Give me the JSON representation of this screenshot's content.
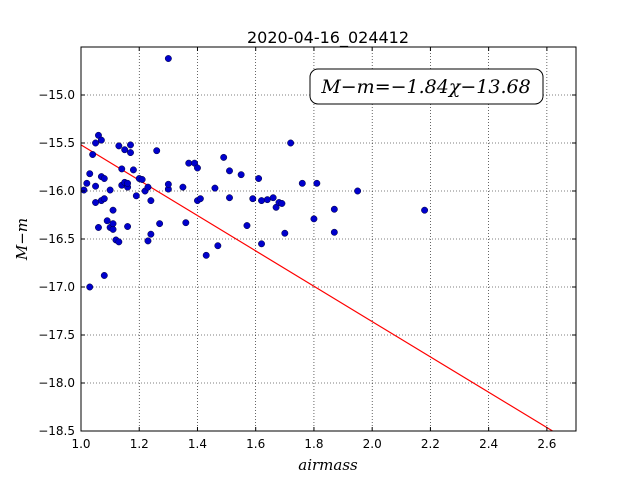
{
  "chart_data": {
    "type": "scatter",
    "title": "2020-04-16_024412",
    "xlabel": "airmass",
    "ylabel": "M−m",
    "xlim": [
      1.0,
      2.7
    ],
    "ylim": [
      -18.5,
      -14.5
    ],
    "xticks": [
      1.0,
      1.2,
      1.4,
      1.6,
      1.8,
      2.0,
      2.2,
      2.4,
      2.6
    ],
    "xtick_labels": [
      "1.0",
      "1.2",
      "1.4",
      "1.6",
      "1.8",
      "2.0",
      "2.2",
      "2.4",
      "2.6"
    ],
    "yticks": [
      -15.0,
      -15.5,
      -16.0,
      -16.5,
      -17.0,
      -17.5,
      -18.0,
      -18.5
    ],
    "ytick_labels": [
      "−15.0",
      "−15.5",
      "−16.0",
      "−16.5",
      "−17.0",
      "−17.5",
      "−18.0",
      "−18.5"
    ],
    "grid": true,
    "annotation": "M−m=−1.84χ−13.68",
    "fit_line": {
      "slope": -1.84,
      "intercept": -13.68,
      "x_range": [
        1.0,
        2.7
      ],
      "color": "#ff0000"
    },
    "marker_color": "#0000cc",
    "points": [
      {
        "x": 1.01,
        "y": -15.99
      },
      {
        "x": 1.02,
        "y": -15.92
      },
      {
        "x": 1.03,
        "y": -17.0
      },
      {
        "x": 1.03,
        "y": -15.82
      },
      {
        "x": 1.04,
        "y": -15.62
      },
      {
        "x": 1.05,
        "y": -15.5
      },
      {
        "x": 1.05,
        "y": -16.12
      },
      {
        "x": 1.05,
        "y": -15.95
      },
      {
        "x": 1.06,
        "y": -16.38
      },
      {
        "x": 1.06,
        "y": -15.42
      },
      {
        "x": 1.07,
        "y": -15.47
      },
      {
        "x": 1.07,
        "y": -15.85
      },
      {
        "x": 1.07,
        "y": -16.1
      },
      {
        "x": 1.08,
        "y": -16.08
      },
      {
        "x": 1.08,
        "y": -16.88
      },
      {
        "x": 1.08,
        "y": -15.87
      },
      {
        "x": 1.09,
        "y": -16.31
      },
      {
        "x": 1.1,
        "y": -16.38
      },
      {
        "x": 1.1,
        "y": -15.99
      },
      {
        "x": 1.11,
        "y": -16.2
      },
      {
        "x": 1.11,
        "y": -16.34
      },
      {
        "x": 1.11,
        "y": -16.4
      },
      {
        "x": 1.12,
        "y": -16.51
      },
      {
        "x": 1.13,
        "y": -15.53
      },
      {
        "x": 1.13,
        "y": -16.53
      },
      {
        "x": 1.14,
        "y": -15.77
      },
      {
        "x": 1.14,
        "y": -15.94
      },
      {
        "x": 1.15,
        "y": -15.91
      },
      {
        "x": 1.15,
        "y": -15.57
      },
      {
        "x": 1.16,
        "y": -15.96
      },
      {
        "x": 1.16,
        "y": -16.37
      },
      {
        "x": 1.16,
        "y": -15.92
      },
      {
        "x": 1.17,
        "y": -15.6
      },
      {
        "x": 1.17,
        "y": -15.52
      },
      {
        "x": 1.18,
        "y": -15.78
      },
      {
        "x": 1.19,
        "y": -16.05
      },
      {
        "x": 1.2,
        "y": -15.87
      },
      {
        "x": 1.21,
        "y": -15.88
      },
      {
        "x": 1.22,
        "y": -16.0
      },
      {
        "x": 1.23,
        "y": -15.96
      },
      {
        "x": 1.23,
        "y": -16.52
      },
      {
        "x": 1.24,
        "y": -16.1
      },
      {
        "x": 1.24,
        "y": -16.45
      },
      {
        "x": 1.26,
        "y": -15.58
      },
      {
        "x": 1.27,
        "y": -16.34
      },
      {
        "x": 1.3,
        "y": -15.98
      },
      {
        "x": 1.3,
        "y": -15.93
      },
      {
        "x": 1.3,
        "y": -14.62
      },
      {
        "x": 1.35,
        "y": -15.96
      },
      {
        "x": 1.36,
        "y": -16.33
      },
      {
        "x": 1.37,
        "y": -15.71
      },
      {
        "x": 1.39,
        "y": -15.71
      },
      {
        "x": 1.4,
        "y": -16.1
      },
      {
        "x": 1.4,
        "y": -15.76
      },
      {
        "x": 1.41,
        "y": -16.08
      },
      {
        "x": 1.43,
        "y": -16.67
      },
      {
        "x": 1.46,
        "y": -15.97
      },
      {
        "x": 1.47,
        "y": -16.57
      },
      {
        "x": 1.49,
        "y": -15.65
      },
      {
        "x": 1.51,
        "y": -15.79
      },
      {
        "x": 1.51,
        "y": -16.07
      },
      {
        "x": 1.55,
        "y": -15.83
      },
      {
        "x": 1.57,
        "y": -16.36
      },
      {
        "x": 1.59,
        "y": -16.08
      },
      {
        "x": 1.61,
        "y": -15.87
      },
      {
        "x": 1.62,
        "y": -16.1
      },
      {
        "x": 1.62,
        "y": -16.55
      },
      {
        "x": 1.64,
        "y": -16.09
      },
      {
        "x": 1.66,
        "y": -16.07
      },
      {
        "x": 1.67,
        "y": -16.17
      },
      {
        "x": 1.68,
        "y": -16.12
      },
      {
        "x": 1.69,
        "y": -16.13
      },
      {
        "x": 1.7,
        "y": -16.44
      },
      {
        "x": 1.72,
        "y": -15.5
      },
      {
        "x": 1.76,
        "y": -15.92
      },
      {
        "x": 1.8,
        "y": -16.29
      },
      {
        "x": 1.81,
        "y": -15.92
      },
      {
        "x": 1.87,
        "y": -16.43
      },
      {
        "x": 1.87,
        "y": -16.19
      },
      {
        "x": 1.95,
        "y": -16.0
      },
      {
        "x": 2.18,
        "y": -16.2
      }
    ]
  }
}
